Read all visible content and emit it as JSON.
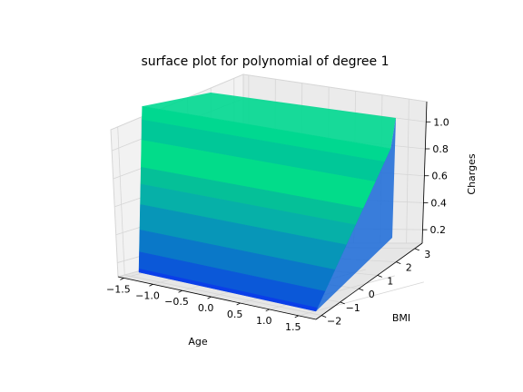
{
  "chart_data": {
    "type": "surface3d",
    "title": "surface plot for polynomial of degree 1",
    "xlabel": "Age",
    "ylabel": "BMI",
    "zlabel": "Charges",
    "xlim": [
      -1.6,
      1.8
    ],
    "ylim": [
      -2.3,
      3.4
    ],
    "zlim": [
      0.1,
      1.15
    ],
    "x_ticks": [
      -1.5,
      -1.0,
      -0.5,
      0.0,
      0.5,
      1.0,
      1.5
    ],
    "x_tick_labels": [
      "−1.5",
      "−1.0",
      "−0.5",
      "0.0",
      "0.5",
      "1.0",
      "1.5"
    ],
    "y_ticks": [
      -2,
      -1,
      0,
      1,
      2,
      3
    ],
    "y_tick_labels": [
      "−2",
      "−1",
      "0",
      "1",
      "2",
      "3"
    ],
    "z_ticks": [
      0.2,
      0.4,
      0.6,
      0.8,
      1.0
    ],
    "z_tick_labels": [
      "0.2",
      "0.4",
      "0.6",
      "0.8",
      "1.0"
    ],
    "grid": true,
    "colormap": "winter",
    "colors": {
      "low": "#0000ff",
      "high": "#00ff80",
      "pane": "#f2f2f2",
      "pane_edge": "#d6d6d6"
    },
    "surface_bands": [
      {
        "z": 0.12,
        "color": "#0a3ee8"
      },
      {
        "z": 0.22,
        "color": "#0b58d8"
      },
      {
        "z": 0.35,
        "color": "#0a78c8"
      },
      {
        "z": 0.5,
        "color": "#0796b8"
      },
      {
        "z": 0.62,
        "color": "#06b0a8"
      },
      {
        "z": 0.72,
        "color": "#05c098"
      },
      {
        "z": 0.88,
        "color": "#02dc8a"
      },
      {
        "z": 1.0,
        "color": "#00c898"
      },
      {
        "z": 1.08,
        "color": "#00d890"
      }
    ]
  }
}
